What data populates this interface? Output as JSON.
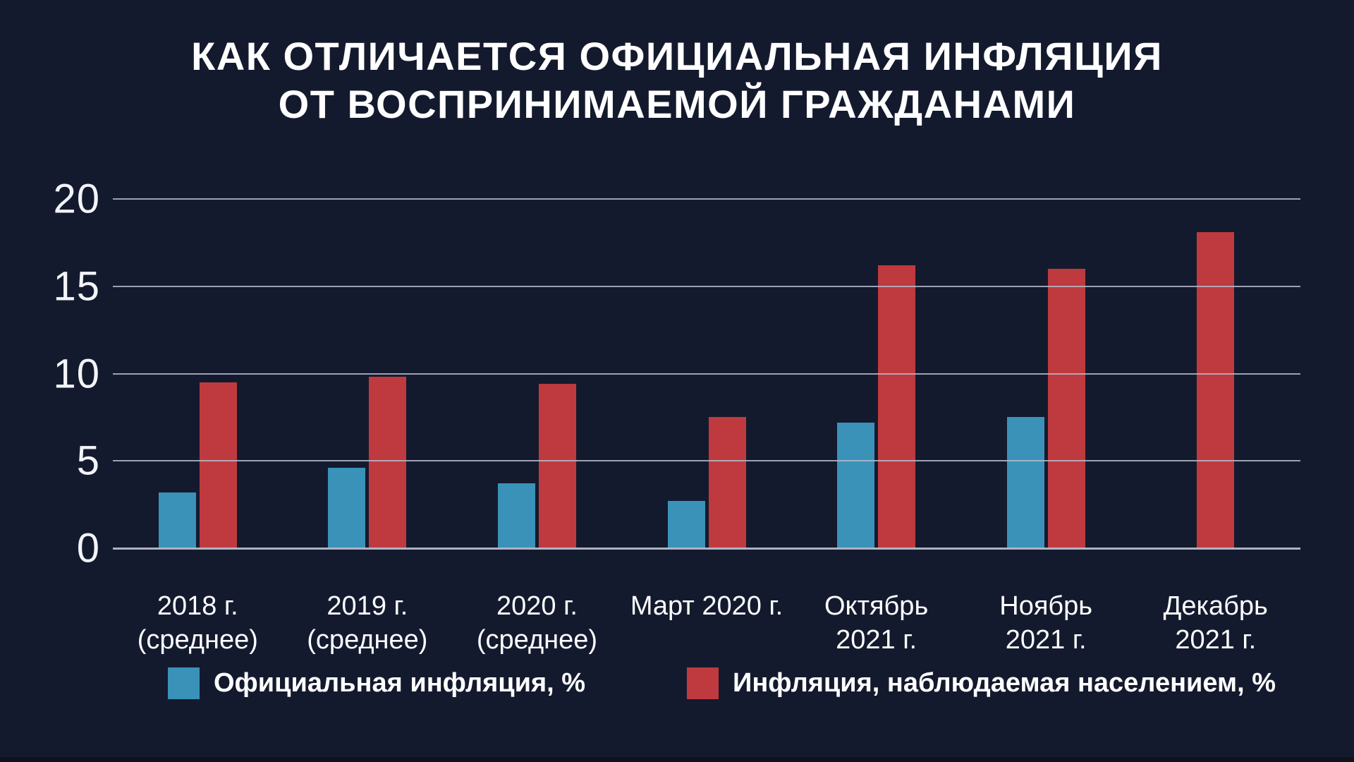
{
  "header": {
    "line1": "КАК ОТЛИЧАЕТСЯ ОФИЦИАЛЬНАЯ ИНФЛЯЦИЯ",
    "line2": "ОТ ВОСПРИНИМАЕМОЙ ГРАЖДАНАМИ"
  },
  "colors": {
    "background": "#141a2e",
    "official_blue": "#3a92b8",
    "observed_red": "#bf3a3e",
    "gridline": "#b4b9c9",
    "text": "#ffffff"
  },
  "legend": {
    "official_label": "Официальная инфляция, %",
    "observed_label": "Инфляция, наблюдаемая населением, %"
  },
  "chart_data": {
    "type": "bar",
    "title": "КАК ОТЛИЧАЕТСЯ ОФИЦИАЛЬНАЯ ИНФЛЯЦИЯ ОТ ВОСПРИНИМАЕМОЙ ГРАЖДАНАМИ",
    "categories": [
      "2018 г.\n(среднее)",
      "2019 г.\n(среднее)",
      "2020 г.\n(среднее)",
      "Март 2020 г.",
      "Октябрь\n2021 г.",
      "Ноябрь\n2021 г.",
      "Декабрь\n2021 г."
    ],
    "series": [
      {
        "name": "Официальная инфляция, %",
        "color": "#3a92b8",
        "values": [
          3.2,
          4.6,
          3.7,
          2.7,
          7.2,
          7.5,
          null
        ]
      },
      {
        "name": "Инфляция, наблюдаемая населением, %",
        "color": "#bf3a3e",
        "values": [
          9.5,
          9.8,
          9.4,
          7.5,
          16.2,
          16.0,
          18.1
        ]
      }
    ],
    "xlabel": "",
    "ylabel": "",
    "ylim": [
      0,
      20
    ],
    "yticks": [
      0,
      5,
      10,
      15,
      20
    ],
    "grid": true,
    "legend_position": "bottom"
  }
}
